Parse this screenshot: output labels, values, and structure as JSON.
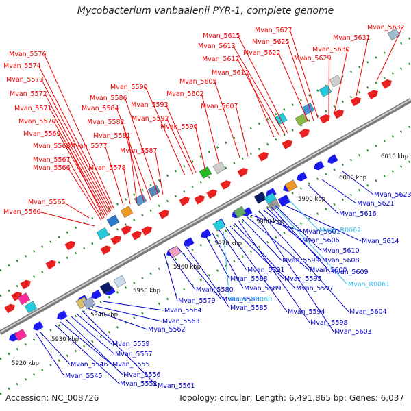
{
  "title": "Mycobacterium vanbaalenii PYR-1, complete genome",
  "accession_label": "Accession: NC_008726",
  "summary_label": "Topology: circular; Length: 6,491,865 bp; Genes: 6,037",
  "colors": {
    "forward_label": "#ee0000",
    "reverse_label": "#0000cc",
    "rna_label": "#33bbee",
    "backbone": "#999999",
    "dots": "#2a8a2a"
  },
  "scale_ticks": [
    "5920 kbp",
    "5930 kbp",
    "5940 kbp",
    "5950 kbp",
    "5960 kbp",
    "5970 kbp",
    "5980 kbp",
    "5990 kbp",
    "6000 kbp",
    "6010 kbp"
  ],
  "forward_genes": [
    "Mvan_5560",
    "Mvan_5565",
    "Mvan_5566",
    "Mvan_5567",
    "Mvan_5568",
    "Mvan_5569",
    "Mvan_5570",
    "Mvan_5571",
    "Mvan_5572",
    "Mvan_5573",
    "Mvan_5574",
    "Mvan_5576",
    "Mvan_5577",
    "Mvan_5578",
    "Mvan_5581",
    "Mvan_5582",
    "Mvan_5584",
    "Mvan_5586",
    "Mvan_5587",
    "Mvan_5590",
    "Mvan_5592",
    "Mvan_5593",
    "Mvan_5596",
    "Mvan_5602",
    "Mvan_5605",
    "Mvan_5607",
    "Mvan_5611",
    "Mvan_5612",
    "Mvan_5613",
    "Mvan_5615",
    "Mvan_5622",
    "Mvan_5625",
    "Mvan_5627",
    "Mvan_5629",
    "Mvan_5630",
    "Mvan_5631",
    "Mvan_5632"
  ],
  "reverse_genes": [
    "Mvan_5545",
    "Mvan_5546",
    "Mvan_5552",
    "Mvan_5555",
    "Mvan_5556",
    "Mvan_5557",
    "Mvan_5559",
    "Mvan_5561",
    "Mvan_5562",
    "Mvan_5563",
    "Mvan_5564",
    "Mvan_5579",
    "Mvan_5580",
    "Mvan_5583",
    "Mvan_5585",
    "Mvan_5588",
    "Mvan_5589",
    "Mvan_5591",
    "Mvan_5594",
    "Mvan_5595",
    "Mvan_5597",
    "Mvan_5598",
    "Mvan_5599",
    "Mvan_5600",
    "Mvan_5601",
    "Mvan_5603",
    "Mvan_5604",
    "Mvan_5606",
    "Mvan_5608",
    "Mvan_5609",
    "Mvan_5610",
    "Mvan_5614",
    "Mvan_5616",
    "Mvan_5621",
    "Mvan_5623"
  ],
  "rna_genes": [
    "Mvan_R0060",
    "Mvan_R0061",
    "Mvan_R0062"
  ]
}
